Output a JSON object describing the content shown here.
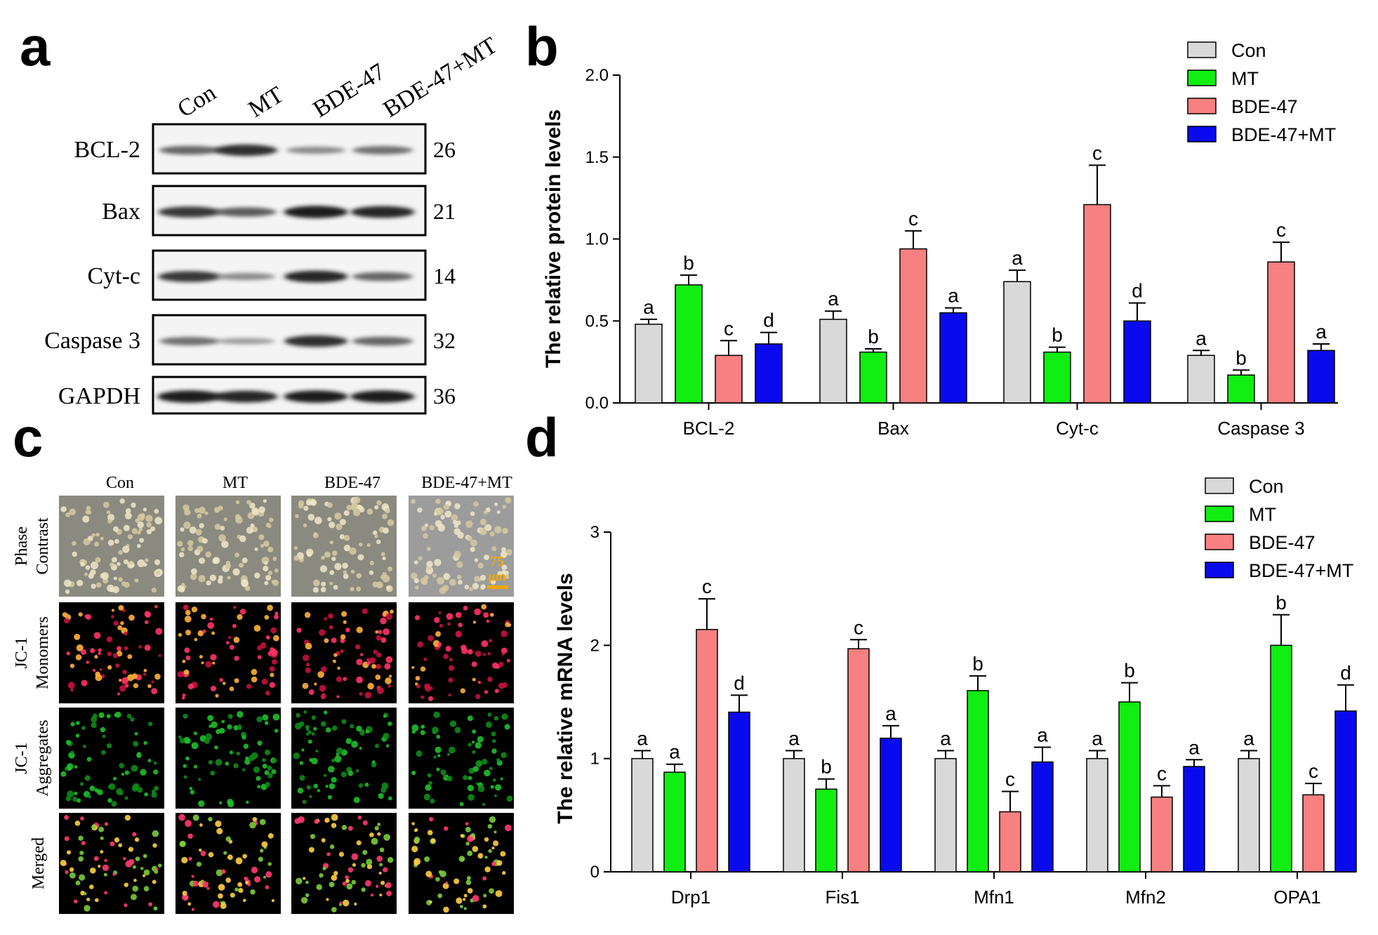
{
  "colors": {
    "Con": "#d9d9d9",
    "MT": "#11ee11",
    "BDE-47": "#f88080",
    "BDE-47+MT": "#0a0aee",
    "scale_bar": "#f5a800"
  },
  "panel_letters": {
    "a": "a",
    "b": "b",
    "c": "c",
    "d": "d"
  },
  "panel_a": {
    "groups": [
      "Con",
      "MT",
      "BDE-47",
      "BDE-47+MT"
    ],
    "proteins": [
      {
        "name": "BCL-2",
        "kda": "26",
        "intensity": [
          0.55,
          0.85,
          0.35,
          0.5
        ]
      },
      {
        "name": "Bax",
        "kda": "21",
        "intensity": [
          0.8,
          0.6,
          0.95,
          0.9
        ]
      },
      {
        "name": "Cyt-c",
        "kda": "14",
        "intensity": [
          0.8,
          0.35,
          0.9,
          0.55
        ]
      },
      {
        "name": "Caspase 3",
        "kda": "32",
        "intensity": [
          0.5,
          0.25,
          0.85,
          0.55
        ]
      },
      {
        "name": "GAPDH",
        "kda": "36",
        "intensity": [
          0.95,
          0.9,
          0.95,
          0.95
        ]
      }
    ]
  },
  "panel_c": {
    "columns": [
      "Con",
      "MT",
      "BDE-47",
      "BDE-47+MT"
    ],
    "rows": [
      {
        "lines": [
          "Phase",
          "Contrast"
        ],
        "kind": "phase"
      },
      {
        "lines": [
          "JC-1",
          "Monomers"
        ],
        "kind": "red"
      },
      {
        "lines": [
          "JC-1",
          "Aggregates"
        ],
        "kind": "green"
      },
      {
        "lines": [
          "Merged"
        ],
        "kind": "merged"
      }
    ],
    "scale_label": [
      "75",
      "μm"
    ]
  },
  "chart_data": [
    {
      "type": "bar",
      "panel": "b",
      "categories": [
        "BCL-2",
        "Bax",
        "Cyt-c",
        "Caspase 3"
      ],
      "series": [
        {
          "name": "Con",
          "values": [
            0.48,
            0.51,
            0.74,
            0.29
          ],
          "errors": [
            0.03,
            0.05,
            0.07,
            0.03
          ],
          "labels": [
            "a",
            "a",
            "a",
            "a"
          ]
        },
        {
          "name": "MT",
          "values": [
            0.72,
            0.31,
            0.31,
            0.17
          ],
          "errors": [
            0.06,
            0.02,
            0.03,
            0.03
          ],
          "labels": [
            "b",
            "b",
            "b",
            "b"
          ]
        },
        {
          "name": "BDE-47",
          "values": [
            0.29,
            0.94,
            1.21,
            0.86
          ],
          "errors": [
            0.09,
            0.11,
            0.24,
            0.12
          ],
          "labels": [
            "c",
            "c",
            "c",
            "c"
          ]
        },
        {
          "name": "BDE-47+MT",
          "values": [
            0.36,
            0.55,
            0.5,
            0.32
          ],
          "errors": [
            0.07,
            0.03,
            0.11,
            0.04
          ],
          "labels": [
            "d",
            "a",
            "d",
            "a"
          ]
        }
      ],
      "title": "",
      "xlabel": "",
      "ylabel": "The relative protein levels",
      "ylim": [
        0,
        2.0
      ],
      "yticks": [
        "0.0",
        "0.5",
        "1.0",
        "1.5",
        "2.0"
      ],
      "legend": "top-right"
    },
    {
      "type": "bar",
      "panel": "d",
      "categories": [
        "Drp1",
        "Fis1",
        "Mfn1",
        "Mfn2",
        "OPA1"
      ],
      "series": [
        {
          "name": "Con",
          "values": [
            1.0,
            1.0,
            1.0,
            1.0,
            1.0
          ],
          "errors": [
            0.07,
            0.07,
            0.07,
            0.07,
            0.07
          ],
          "labels": [
            "a",
            "a",
            "a",
            "a",
            "a"
          ]
        },
        {
          "name": "MT",
          "values": [
            0.88,
            0.73,
            1.6,
            1.5,
            2.0
          ],
          "errors": [
            0.07,
            0.09,
            0.13,
            0.17,
            0.27
          ],
          "labels": [
            "a",
            "b",
            "b",
            "b",
            "b"
          ]
        },
        {
          "name": "BDE-47",
          "values": [
            2.14,
            1.97,
            0.53,
            0.66,
            0.68
          ],
          "errors": [
            0.27,
            0.08,
            0.18,
            0.1,
            0.1
          ],
          "labels": [
            "c",
            "c",
            "c",
            "c",
            "c"
          ]
        },
        {
          "name": "BDE-47+MT",
          "values": [
            1.41,
            1.18,
            0.97,
            0.93,
            1.42
          ],
          "errors": [
            0.15,
            0.11,
            0.13,
            0.06,
            0.23
          ],
          "labels": [
            "d",
            "a",
            "a",
            "a",
            "d"
          ]
        }
      ],
      "title": "",
      "xlabel": "",
      "ylabel": "The relative mRNA levels",
      "ylim": [
        0,
        3
      ],
      "yticks": [
        "0",
        "1",
        "2",
        "3"
      ],
      "legend": "top-right"
    }
  ]
}
